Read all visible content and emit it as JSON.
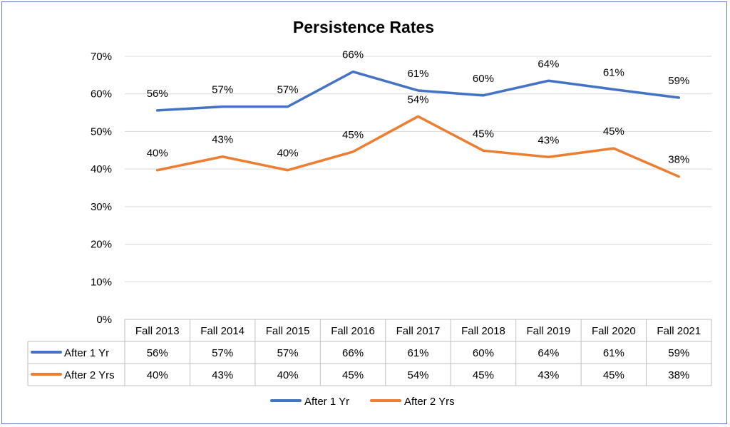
{
  "chart_data": {
    "type": "line",
    "title": "Persistence Rates",
    "categories": [
      "Fall 2013",
      "Fall 2014",
      "Fall 2015",
      "Fall 2016",
      "Fall 2017",
      "Fall 2018",
      "Fall 2019",
      "Fall 2020",
      "Fall 2021"
    ],
    "ylim": [
      0,
      0.7
    ],
    "yticks": [
      "0%",
      "10%",
      "20%",
      "30%",
      "40%",
      "50%",
      "60%",
      "70%"
    ],
    "grid": true,
    "legend_position": "bottom",
    "data_table": true,
    "series": [
      {
        "name": "After 1 Yr",
        "color": "#4472c4",
        "values": [
          0.556,
          0.566,
          0.566,
          0.659,
          0.609,
          0.596,
          0.635,
          0.612,
          0.59
        ],
        "labels": [
          "56%",
          "57%",
          "57%",
          "66%",
          "61%",
          "60%",
          "64%",
          "61%",
          "59%"
        ]
      },
      {
        "name": "After 2 Yrs",
        "color": "#ed7d31",
        "values": [
          0.397,
          0.433,
          0.397,
          0.446,
          0.54,
          0.449,
          0.432,
          0.455,
          0.38
        ],
        "labels": [
          "40%",
          "43%",
          "40%",
          "45%",
          "54%",
          "45%",
          "43%",
          "45%",
          "38%"
        ]
      }
    ]
  }
}
